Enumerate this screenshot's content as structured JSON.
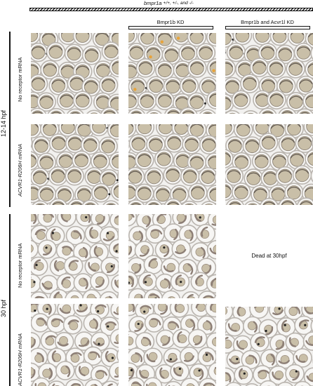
{
  "header": {
    "genotype_gene": "bmpr1a",
    "genotype_alleles": "+/+, +/-, and -/-"
  },
  "columns": [
    {
      "label": ""
    },
    {
      "label": "Bmpr1b KD"
    },
    {
      "label": "Bmpr1b and Acvr1l KD"
    }
  ],
  "stages": [
    {
      "label": "12-14 hpf"
    },
    {
      "label": "30 hpf"
    }
  ],
  "rows": [
    {
      "label": "No receptor mRNA",
      "italic": false
    },
    {
      "label": "ACVR1-R206H mRNA",
      "italic": true
    },
    {
      "label": "No receptor mRNA",
      "italic": false
    },
    {
      "label": "ACVR1-R206H mRNA",
      "italic": true
    }
  ],
  "dead_note": "Dead at 30hpf",
  "colors": {
    "background": "#f2f1ef",
    "chorion": "#b9b4ae",
    "yolk": "#c9bfa8",
    "embryo30": "#8d7f76",
    "orange_marker": "#e8a33a"
  }
}
